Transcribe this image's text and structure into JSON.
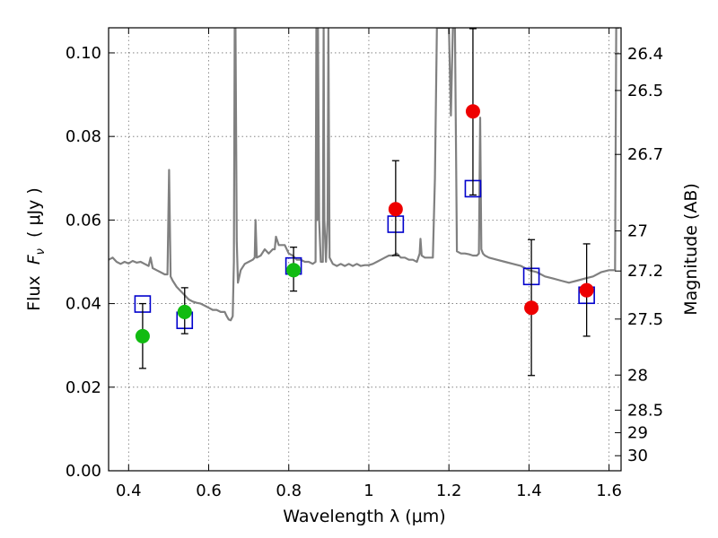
{
  "chart_data": {
    "type": "scatter",
    "xlabel": "Wavelength  λ (μm)",
    "ylabel": "Flux  F_ν  ( μJy )",
    "ylabel_parts": {
      "prefix": "Flux  ",
      "symbol": "F",
      "subscript": "ν",
      "suffix": "  ( μJy )"
    },
    "right_ylabel": "Magnitude (AB)",
    "xlim": [
      0.35,
      1.63
    ],
    "ylim": [
      0.0,
      0.106
    ],
    "grid": true,
    "x_ticks": [
      0.4,
      0.6,
      0.8,
      1.0,
      1.2,
      1.4,
      1.6
    ],
    "x_tick_labels": [
      "0.4",
      "0.6",
      "0.8",
      "1",
      "1.2",
      "1.4",
      "1.6"
    ],
    "y_ticks": [
      0.0,
      0.02,
      0.04,
      0.06,
      0.08,
      0.1
    ],
    "y_tick_labels": [
      "0.00",
      "0.02",
      "0.04",
      "0.06",
      "0.08",
      "0.10"
    ],
    "right_ticks": [
      {
        "label": "26.4",
        "flux": 0.0998
      },
      {
        "label": "26.5",
        "flux": 0.091
      },
      {
        "label": "26.7",
        "flux": 0.0757
      },
      {
        "label": "27",
        "flux": 0.0574
      },
      {
        "label": "27.2",
        "flux": 0.0478
      },
      {
        "label": "27.5",
        "flux": 0.0363
      },
      {
        "label": "28",
        "flux": 0.0229
      },
      {
        "label": "28.5",
        "flux": 0.0145
      },
      {
        "label": "29",
        "flux": 0.0091
      },
      {
        "label": "30",
        "flux": 0.0036
      }
    ],
    "series": [
      {
        "kind": "spectrum",
        "color": "#808080",
        "points": [
          [
            0.35,
            0.0505
          ],
          [
            0.36,
            0.051
          ],
          [
            0.37,
            0.05
          ],
          [
            0.38,
            0.0495
          ],
          [
            0.39,
            0.05
          ],
          [
            0.4,
            0.0496
          ],
          [
            0.41,
            0.0502
          ],
          [
            0.42,
            0.0498
          ],
          [
            0.43,
            0.05
          ],
          [
            0.44,
            0.0495
          ],
          [
            0.45,
            0.049
          ],
          [
            0.455,
            0.051
          ],
          [
            0.46,
            0.0485
          ],
          [
            0.47,
            0.048
          ],
          [
            0.48,
            0.0475
          ],
          [
            0.49,
            0.047
          ],
          [
            0.497,
            0.047
          ],
          [
            0.501,
            0.072
          ],
          [
            0.505,
            0.0465
          ],
          [
            0.51,
            0.0455
          ],
          [
            0.52,
            0.044
          ],
          [
            0.53,
            0.043
          ],
          [
            0.54,
            0.042
          ],
          [
            0.55,
            0.041
          ],
          [
            0.56,
            0.0405
          ],
          [
            0.57,
            0.0402
          ],
          [
            0.58,
            0.04
          ],
          [
            0.59,
            0.0395
          ],
          [
            0.6,
            0.039
          ],
          [
            0.61,
            0.0385
          ],
          [
            0.62,
            0.0385
          ],
          [
            0.63,
            0.038
          ],
          [
            0.64,
            0.038
          ],
          [
            0.645,
            0.037
          ],
          [
            0.65,
            0.0362
          ],
          [
            0.655,
            0.036
          ],
          [
            0.66,
            0.037
          ],
          [
            0.663,
            0.05
          ],
          [
            0.665,
            0.106
          ],
          [
            0.667,
            0.106
          ],
          [
            0.67,
            0.055
          ],
          [
            0.673,
            0.045
          ],
          [
            0.68,
            0.048
          ],
          [
            0.69,
            0.0495
          ],
          [
            0.7,
            0.05
          ],
          [
            0.71,
            0.0505
          ],
          [
            0.715,
            0.051
          ],
          [
            0.717,
            0.06
          ],
          [
            0.72,
            0.051
          ],
          [
            0.73,
            0.0515
          ],
          [
            0.74,
            0.053
          ],
          [
            0.75,
            0.052
          ],
          [
            0.76,
            0.053
          ],
          [
            0.765,
            0.053
          ],
          [
            0.768,
            0.056
          ],
          [
            0.775,
            0.054
          ],
          [
            0.79,
            0.054
          ],
          [
            0.8,
            0.052
          ],
          [
            0.81,
            0.0515
          ],
          [
            0.82,
            0.0505
          ],
          [
            0.83,
            0.0505
          ],
          [
            0.84,
            0.05
          ],
          [
            0.85,
            0.05
          ],
          [
            0.86,
            0.0495
          ],
          [
            0.867,
            0.05
          ],
          [
            0.869,
            0.106
          ],
          [
            0.871,
            0.06
          ],
          [
            0.873,
            0.106
          ],
          [
            0.876,
            0.06
          ],
          [
            0.88,
            0.05
          ],
          [
            0.885,
            0.05
          ],
          [
            0.887,
            0.106
          ],
          [
            0.889,
            0.06
          ],
          [
            0.893,
            0.05
          ],
          [
            0.897,
            0.06
          ],
          [
            0.899,
            0.106
          ],
          [
            0.902,
            0.051
          ],
          [
            0.91,
            0.0495
          ],
          [
            0.92,
            0.049
          ],
          [
            0.93,
            0.0495
          ],
          [
            0.94,
            0.049
          ],
          [
            0.95,
            0.0495
          ],
          [
            0.96,
            0.049
          ],
          [
            0.97,
            0.0495
          ],
          [
            0.98,
            0.049
          ],
          [
            0.99,
            0.0492
          ],
          [
            1.0,
            0.0492
          ],
          [
            1.01,
            0.0495
          ],
          [
            1.02,
            0.05
          ],
          [
            1.03,
            0.0505
          ],
          [
            1.04,
            0.051
          ],
          [
            1.05,
            0.0515
          ],
          [
            1.06,
            0.0515
          ],
          [
            1.07,
            0.052
          ],
          [
            1.08,
            0.051
          ],
          [
            1.09,
            0.051
          ],
          [
            1.1,
            0.0505
          ],
          [
            1.11,
            0.0505
          ],
          [
            1.12,
            0.05
          ],
          [
            1.127,
            0.052
          ],
          [
            1.129,
            0.0555
          ],
          [
            1.132,
            0.0515
          ],
          [
            1.14,
            0.051
          ],
          [
            1.15,
            0.051
          ],
          [
            1.16,
            0.051
          ],
          [
            1.165,
            0.07
          ],
          [
            1.17,
            0.106
          ],
          [
            1.2,
            0.106
          ],
          [
            1.205,
            0.085
          ],
          [
            1.21,
            0.106
          ],
          [
            1.215,
            0.106
          ],
          [
            1.22,
            0.0525
          ],
          [
            1.23,
            0.052
          ],
          [
            1.24,
            0.052
          ],
          [
            1.25,
            0.0518
          ],
          [
            1.26,
            0.0515
          ],
          [
            1.27,
            0.0515
          ],
          [
            1.275,
            0.052
          ],
          [
            1.278,
            0.0845
          ],
          [
            1.281,
            0.053
          ],
          [
            1.285,
            0.052
          ],
          [
            1.29,
            0.0515
          ],
          [
            1.3,
            0.051
          ],
          [
            1.32,
            0.0505
          ],
          [
            1.34,
            0.05
          ],
          [
            1.36,
            0.0495
          ],
          [
            1.38,
            0.049
          ],
          [
            1.4,
            0.048
          ],
          [
            1.42,
            0.0475
          ],
          [
            1.44,
            0.0465
          ],
          [
            1.46,
            0.046
          ],
          [
            1.48,
            0.0455
          ],
          [
            1.5,
            0.045
          ],
          [
            1.52,
            0.0455
          ],
          [
            1.54,
            0.046
          ],
          [
            1.56,
            0.0465
          ],
          [
            1.58,
            0.0475
          ],
          [
            1.6,
            0.048
          ],
          [
            1.61,
            0.048
          ],
          [
            1.615,
            0.048
          ],
          [
            1.618,
            0.106
          ],
          [
            1.625,
            0.106
          ]
        ]
      },
      {
        "kind": "model-photometry",
        "marker": "square",
        "color": "#0000cc",
        "points": [
          [
            0.435,
            0.0399
          ],
          [
            0.54,
            0.036
          ],
          [
            0.812,
            0.049
          ],
          [
            1.067,
            0.059
          ],
          [
            1.26,
            0.0675
          ],
          [
            1.406,
            0.0465
          ],
          [
            1.544,
            0.042
          ]
        ]
      },
      {
        "kind": "observed-green",
        "marker": "circle",
        "color": "#11bb11",
        "points": [
          {
            "x": 0.435,
            "y": 0.0322,
            "err": [
              0.0245,
              0.04
            ]
          },
          {
            "x": 0.54,
            "y": 0.038,
            "err": [
              0.0328,
              0.0438
            ]
          },
          {
            "x": 0.812,
            "y": 0.048,
            "err": [
              0.043,
              0.0535
            ]
          }
        ]
      },
      {
        "kind": "observed-red",
        "marker": "circle",
        "color": "#ee0000",
        "points": [
          {
            "x": 1.067,
            "y": 0.0626,
            "err": [
              0.0515,
              0.0742
            ]
          },
          {
            "x": 1.26,
            "y": 0.086,
            "err": [
              0.066,
              0.1058
            ]
          },
          {
            "x": 1.406,
            "y": 0.039,
            "err": [
              0.0228,
              0.0553
            ]
          },
          {
            "x": 1.544,
            "y": 0.0432,
            "err": [
              0.0322,
              0.0543
            ]
          }
        ]
      }
    ]
  }
}
